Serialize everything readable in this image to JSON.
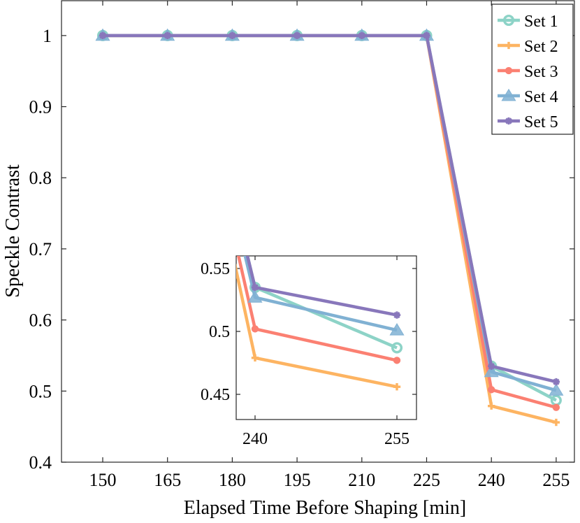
{
  "chart_data": {
    "type": "line",
    "xlabel": "Elapsed Time Before Shaping [min]",
    "ylabel": "Speckle Contrast",
    "categories": [
      "150",
      "165",
      "180",
      "195",
      "210",
      "225",
      "240",
      "255"
    ],
    "ylim": [
      0.4,
      1.05
    ],
    "yticks": [
      "0.4",
      "0.5",
      "0.6",
      "0.7",
      "0.8",
      "0.9",
      "1"
    ],
    "legend_position": "top-right",
    "grid": false,
    "series": [
      {
        "name": "Set 1",
        "color": "#8dd3c7",
        "marker": "circle",
        "values": [
          1,
          1,
          1,
          1,
          1,
          1,
          0.535,
          0.487
        ]
      },
      {
        "name": "Set 2",
        "color": "#fdb462",
        "marker": "plus",
        "values": [
          1,
          1,
          1,
          1,
          1,
          1,
          0.479,
          0.456
        ]
      },
      {
        "name": "Set 3",
        "color": "#fb8072",
        "marker": "dot",
        "values": [
          1,
          1,
          1,
          1,
          1,
          1,
          0.502,
          0.477
        ]
      },
      {
        "name": "Set 4",
        "color": "#80b1d3",
        "marker": "triangle",
        "values": [
          1,
          1,
          1,
          1,
          1,
          1,
          0.527,
          0.501
        ]
      },
      {
        "name": "Set 5",
        "color": "#8877bb",
        "marker": "star",
        "values": [
          1,
          1,
          1,
          1,
          1,
          1,
          0.535,
          0.513
        ]
      }
    ],
    "inset": {
      "categories": [
        "240",
        "255"
      ],
      "ylim": [
        0.43,
        0.56
      ],
      "yticks": [
        "0.45",
        "0.5",
        "0.55"
      ]
    }
  }
}
